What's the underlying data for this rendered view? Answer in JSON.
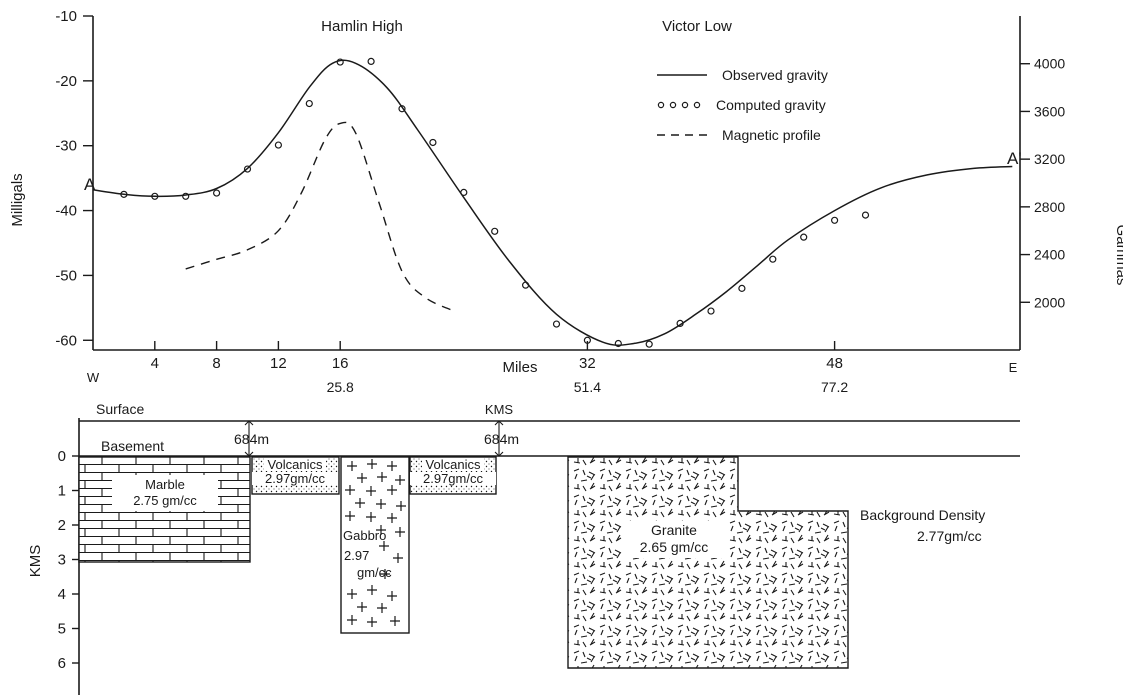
{
  "chart_data": [
    {
      "type": "line",
      "annotations": {
        "hamlin_high": "Hamlin High",
        "victor_low": "Victor Low",
        "profile_start": "A",
        "profile_end": "A'",
        "west": "W",
        "east": "E"
      },
      "xlabel": "Miles",
      "ylabel": "Milligals",
      "ylabel_right": "Gammas",
      "xlim": [
        0,
        60
      ],
      "ylim": [
        -61.5,
        -10
      ],
      "y2lim": [
        1600,
        4400
      ],
      "x_ticks": [
        4,
        8,
        12,
        16,
        32,
        48
      ],
      "x_tick_labels": [
        "4",
        "8",
        "12",
        "16",
        "32",
        "48"
      ],
      "km_ticks": [
        16,
        32,
        48
      ],
      "km_tick_labels": [
        "25.8",
        "51.4",
        "77.2"
      ],
      "y_ticks": [
        -10,
        -20,
        -30,
        -40,
        -50,
        -60
      ],
      "y_tick_labels": [
        "-10",
        "-20",
        "-30",
        "-40",
        "-50",
        "-60"
      ],
      "y2_ticks": [
        2000,
        2400,
        2800,
        3200,
        3600,
        4000
      ],
      "y2_tick_labels": [
        "2000",
        "2400",
        "2800",
        "3200",
        "3600",
        "4000"
      ],
      "legend_position": "top-right",
      "series": [
        {
          "name": "Observed gravity",
          "style": "solid",
          "x": [
            0,
            2,
            4,
            6,
            8,
            10,
            12,
            14,
            15.5,
            17,
            19,
            21,
            24,
            27,
            30,
            33,
            35,
            37,
            39,
            41,
            43,
            45,
            48,
            51,
            54,
            57,
            59.5
          ],
          "y": [
            -36.8,
            -37.5,
            -37.8,
            -37.6,
            -36.6,
            -33.5,
            -28,
            -21,
            -17.3,
            -17.3,
            -21,
            -27.5,
            -38,
            -48,
            -56,
            -60.3,
            -60.5,
            -59,
            -56,
            -52.5,
            -48.5,
            -44.5,
            -40,
            -36.5,
            -34.5,
            -33.5,
            -33.2
          ]
        },
        {
          "name": "Computed gravity",
          "style": "circles",
          "x": [
            2,
            4,
            6,
            8,
            10,
            12,
            14,
            16,
            18,
            20,
            22,
            24,
            26,
            28,
            30,
            32,
            34,
            36,
            38,
            40,
            42,
            44,
            46,
            48,
            50
          ],
          "y": [
            -37.5,
            -37.8,
            -37.8,
            -37.3,
            -33.6,
            -29.9,
            -23.5,
            -17.1,
            -17,
            -24.3,
            -29.5,
            -37.2,
            -43.2,
            -51.5,
            -57.5,
            -60,
            -60.5,
            -60.6,
            -57.4,
            -55.5,
            -52,
            -47.5,
            -44.1,
            -41.5,
            -40.7
          ]
        },
        {
          "name": "Magnetic profile",
          "style": "dashed",
          "axis": "right",
          "x": [
            6,
            8,
            10,
            12,
            13.5,
            15,
            16,
            17,
            18.5,
            20,
            21.5,
            23.5
          ],
          "y": [
            2280,
            2360,
            2440,
            2600,
            2920,
            3360,
            3500,
            3420,
            2840,
            2260,
            2040,
            1920
          ]
        }
      ]
    },
    {
      "type": "table",
      "ylabel": "KMS",
      "ylim": [
        0,
        6.5
      ],
      "y_ticks": [
        0,
        1,
        2,
        3,
        4,
        5,
        6
      ],
      "y_tick_labels": [
        "0",
        "1",
        "2",
        "3",
        "4",
        "5",
        "6"
      ],
      "top_labels": {
        "surface": "Surface",
        "basement": "Basement",
        "kms": "KMS",
        "elev_left": "684m",
        "elev_right": "684m",
        "background_title": "Background Density",
        "background_value": "2.77gm/cc"
      },
      "bodies": [
        {
          "name": "Marble",
          "density": "2.75 gm/cc",
          "pattern": "brick",
          "x": [
            0,
            10
          ],
          "depth": [
            0,
            2.8
          ]
        },
        {
          "name": "Volcanics",
          "density": "2.97gm/cc",
          "pattern": "dots",
          "x": [
            10,
            15
          ],
          "depth": [
            0,
            1
          ]
        },
        {
          "name": "Gabbro",
          "density_lines": [
            "2.97",
            "gm/cc"
          ],
          "pattern": "plus",
          "x": [
            15,
            20
          ],
          "depth": [
            0,
            4.8
          ]
        },
        {
          "name": "Volcanics",
          "density": "2.97gm/cc",
          "pattern": "dots",
          "x": [
            20,
            25
          ],
          "depth": [
            0,
            1
          ]
        },
        {
          "name": "Granite",
          "density": "2.65 gm/cc",
          "pattern": "dashes",
          "x": [
            28.5,
            49.5
          ],
          "depth": [
            0,
            6.2
          ],
          "step_x": 39,
          "step_depth": 1.5
        }
      ]
    }
  ]
}
